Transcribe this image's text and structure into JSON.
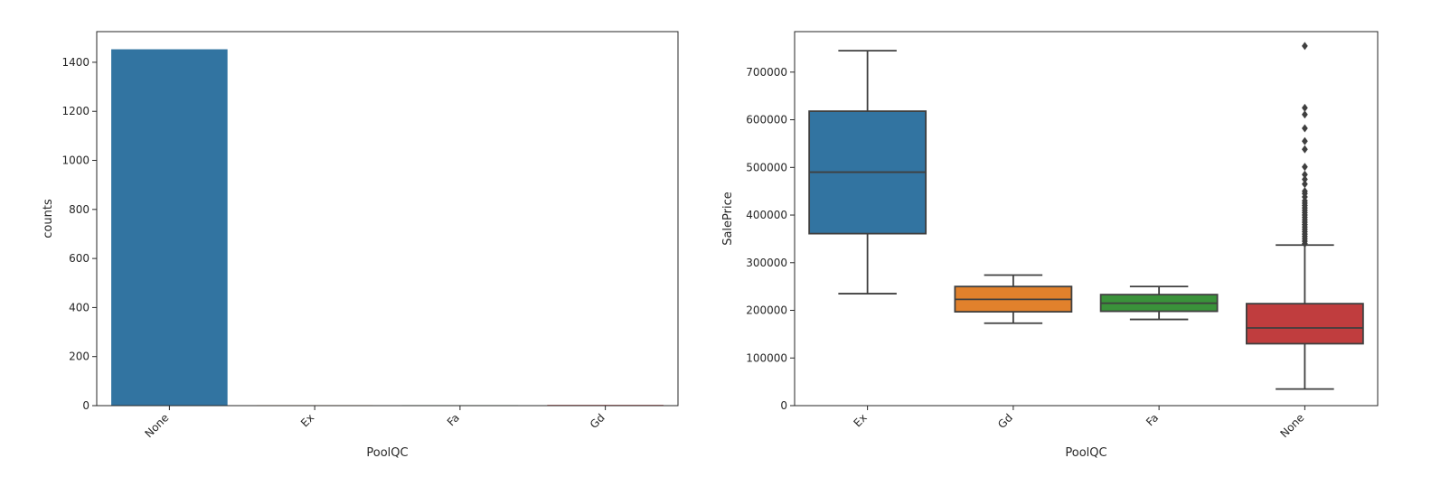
{
  "chart_data": [
    {
      "type": "bar",
      "xlabel": "PoolQC",
      "ylabel": "counts",
      "categories": [
        "None",
        "Ex",
        "Fa",
        "Gd"
      ],
      "values": [
        1453,
        2,
        2,
        3
      ],
      "ylim": [
        0,
        1525
      ],
      "yticks": [
        0,
        200,
        400,
        600,
        800,
        1000,
        1200,
        1400
      ],
      "colors": [
        "#3274a1",
        "#e1812c",
        "#3a923a",
        "#c03d3e"
      ],
      "grid": false,
      "legend": "none"
    },
    {
      "type": "boxplot",
      "xlabel": "PoolQC",
      "ylabel": "SalePrice",
      "categories": [
        "Ex",
        "Gd",
        "Fa",
        "None"
      ],
      "colors": [
        "#3274a1",
        "#e1812c",
        "#3a923a",
        "#c03d3e"
      ],
      "ylim": [
        0,
        785000
      ],
      "yticks": [
        0,
        100000,
        200000,
        300000,
        400000,
        500000,
        600000,
        700000
      ],
      "grid": false,
      "legend": "none",
      "boxes": [
        {
          "category": "Ex",
          "whisker_low": 235000,
          "q1": 361000,
          "median": 490000,
          "q3": 618000,
          "whisker_high": 745000,
          "outliers": []
        },
        {
          "category": "Gd",
          "whisker_low": 173000,
          "q1": 197000,
          "median": 223000,
          "q3": 250000,
          "whisker_high": 274000,
          "outliers": []
        },
        {
          "category": "Fa",
          "whisker_low": 181000,
          "q1": 198000,
          "median": 215000,
          "q3": 233000,
          "whisker_high": 250000,
          "outliers": []
        },
        {
          "category": "None",
          "whisker_low": 34900,
          "q1": 130000,
          "median": 163000,
          "q3": 214000,
          "whisker_high": 337000,
          "outliers": [
            340000,
            345000,
            350000,
            355000,
            360000,
            365000,
            370000,
            375000,
            380000,
            385000,
            390000,
            395000,
            400000,
            405000,
            410000,
            415000,
            420000,
            425000,
            430000,
            438000,
            445000,
            450000,
            465000,
            475000,
            485000,
            501000,
            538000,
            555000,
            582000,
            611000,
            625000,
            755000
          ]
        }
      ]
    }
  ]
}
